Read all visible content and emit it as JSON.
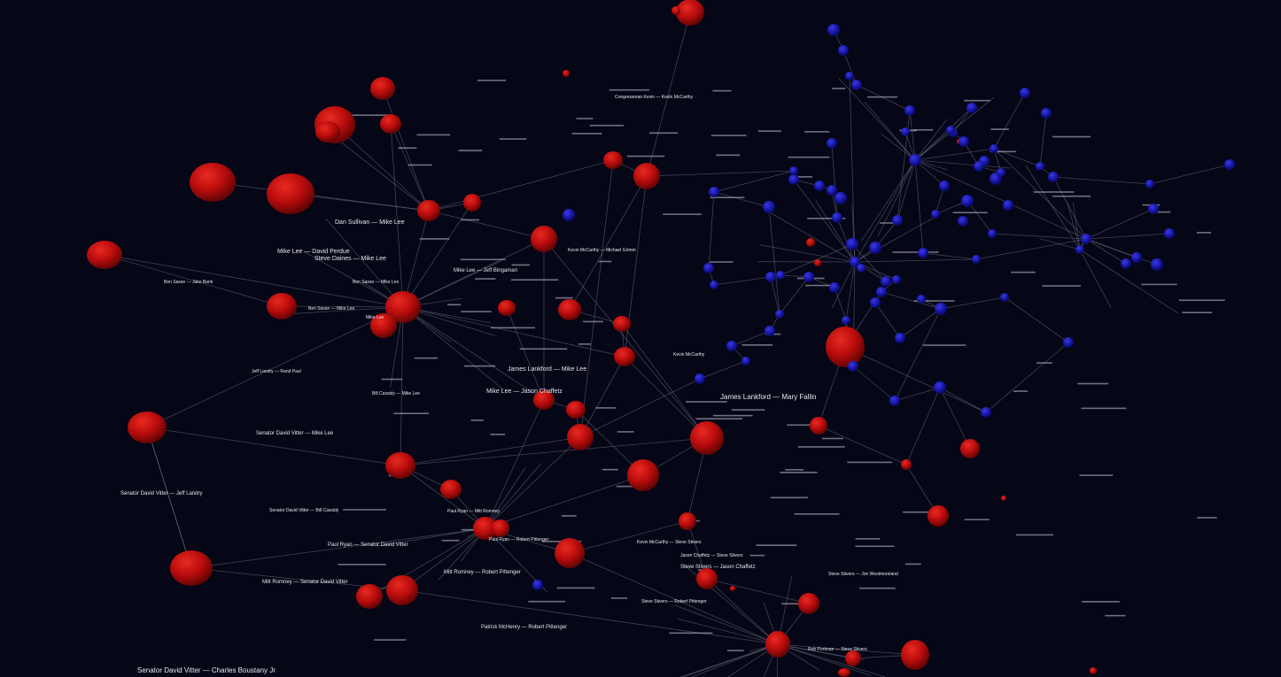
{
  "colors": {
    "background": "#050616",
    "edge": "#8a8ca0",
    "label": "#e8e8f0",
    "red_party": "#c41010",
    "blue_party": "#1a1ab0"
  },
  "graph": {
    "labels": [
      "Dan Sullivan — Mike Lee",
      "Mike Lee — David Perdue",
      "Steve Daines — Mike Lee",
      "Mike Lee — Jeff Bingaman",
      "Ben Sasse — Mike Lee",
      "Ben Sasse — Mike Lee",
      "James Lankford — Mike Lee",
      "Mike Lee — Jason Chaffetz",
      "James Lankford — Mary Fallin",
      "Senator David Vitter — Mike Lee",
      "Senator David Vitter — Jeff Landry",
      "Paul Ryan — Senator David Vitter",
      "Mitt Romney — Senator David Vitter",
      "Mitt Romney — Robert Pittenger",
      "Paul Ryan — Robert Pittenger",
      "Patrick McHenry — Robert Pittenger",
      "Senator David Vitter — Charles Boustany Jr",
      "Jason Chaffetz — Steve Stivers",
      "Steve Stivers — Jason Chaffetz",
      "Kevin McCarthy — Steve Stivers",
      "Steve Stivers — Robert Pittenger",
      "Rob Portman — Steve Stivers",
      "Steve Stivers — Jon Westmoreland",
      "Kevin McCarthy — Michael Grimm",
      "Kevin McCarthy",
      "Senator David Vitter — Bill Cassidy",
      "Bill Cassidy — Mike Lee",
      "Ben Sasse — Jake Bank",
      "Jeff Landry — Rand Paul",
      "Congressman Kevin — Kevin McCarthy",
      "Mike Lee",
      "Paul Ryan — Mitt Romney"
    ],
    "nodes": [
      {
        "id": "mike-lee",
        "party": "red"
      },
      {
        "id": "senator-david-vitter",
        "party": "red"
      },
      {
        "id": "steve-stivers",
        "party": "red"
      },
      {
        "id": "robert-pittenger",
        "party": "red"
      },
      {
        "id": "paul-ryan",
        "party": "red"
      },
      {
        "id": "mitt-romney",
        "party": "red"
      },
      {
        "id": "james-lankford",
        "party": "red"
      },
      {
        "id": "jason-chaffetz",
        "party": "red"
      },
      {
        "id": "kevin-mccarthy",
        "party": "red"
      },
      {
        "id": "patrick-mchenry",
        "party": "red"
      },
      {
        "id": "ben-sasse",
        "party": "red"
      },
      {
        "id": "dan-sullivan",
        "party": "red"
      },
      {
        "id": "mary-fallin",
        "party": "red"
      },
      {
        "id": "democrat-cluster",
        "party": "blue"
      }
    ]
  }
}
